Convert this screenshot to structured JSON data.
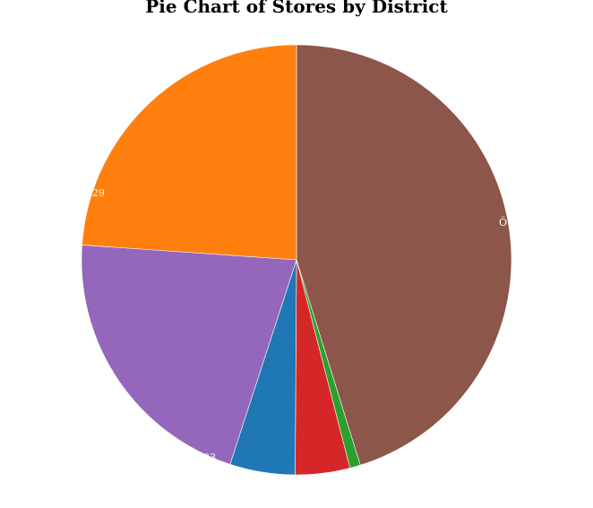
{
  "chart_data": {
    "type": "pie",
    "title": "Pie Chart of Stores by District",
    "slices": [
      {
        "label": "",
        "value": 45.2,
        "color": "#8c564b"
      },
      {
        "label": "",
        "value": 0.8,
        "color": "#2ca02c"
      },
      {
        "label": "",
        "value": 4.1,
        "color": "#d62728"
      },
      {
        "label": "",
        "value": 4.9,
        "color": "#1f77b4"
      },
      {
        "label": "",
        "value": 21.1,
        "color": "#9467bd"
      },
      {
        "label": "",
        "value": 23.9,
        "color": "#ff7f0e"
      }
    ],
    "visible_label_fragments": [
      "Ö",
      "29",
      "33"
    ],
    "legend": "none"
  }
}
